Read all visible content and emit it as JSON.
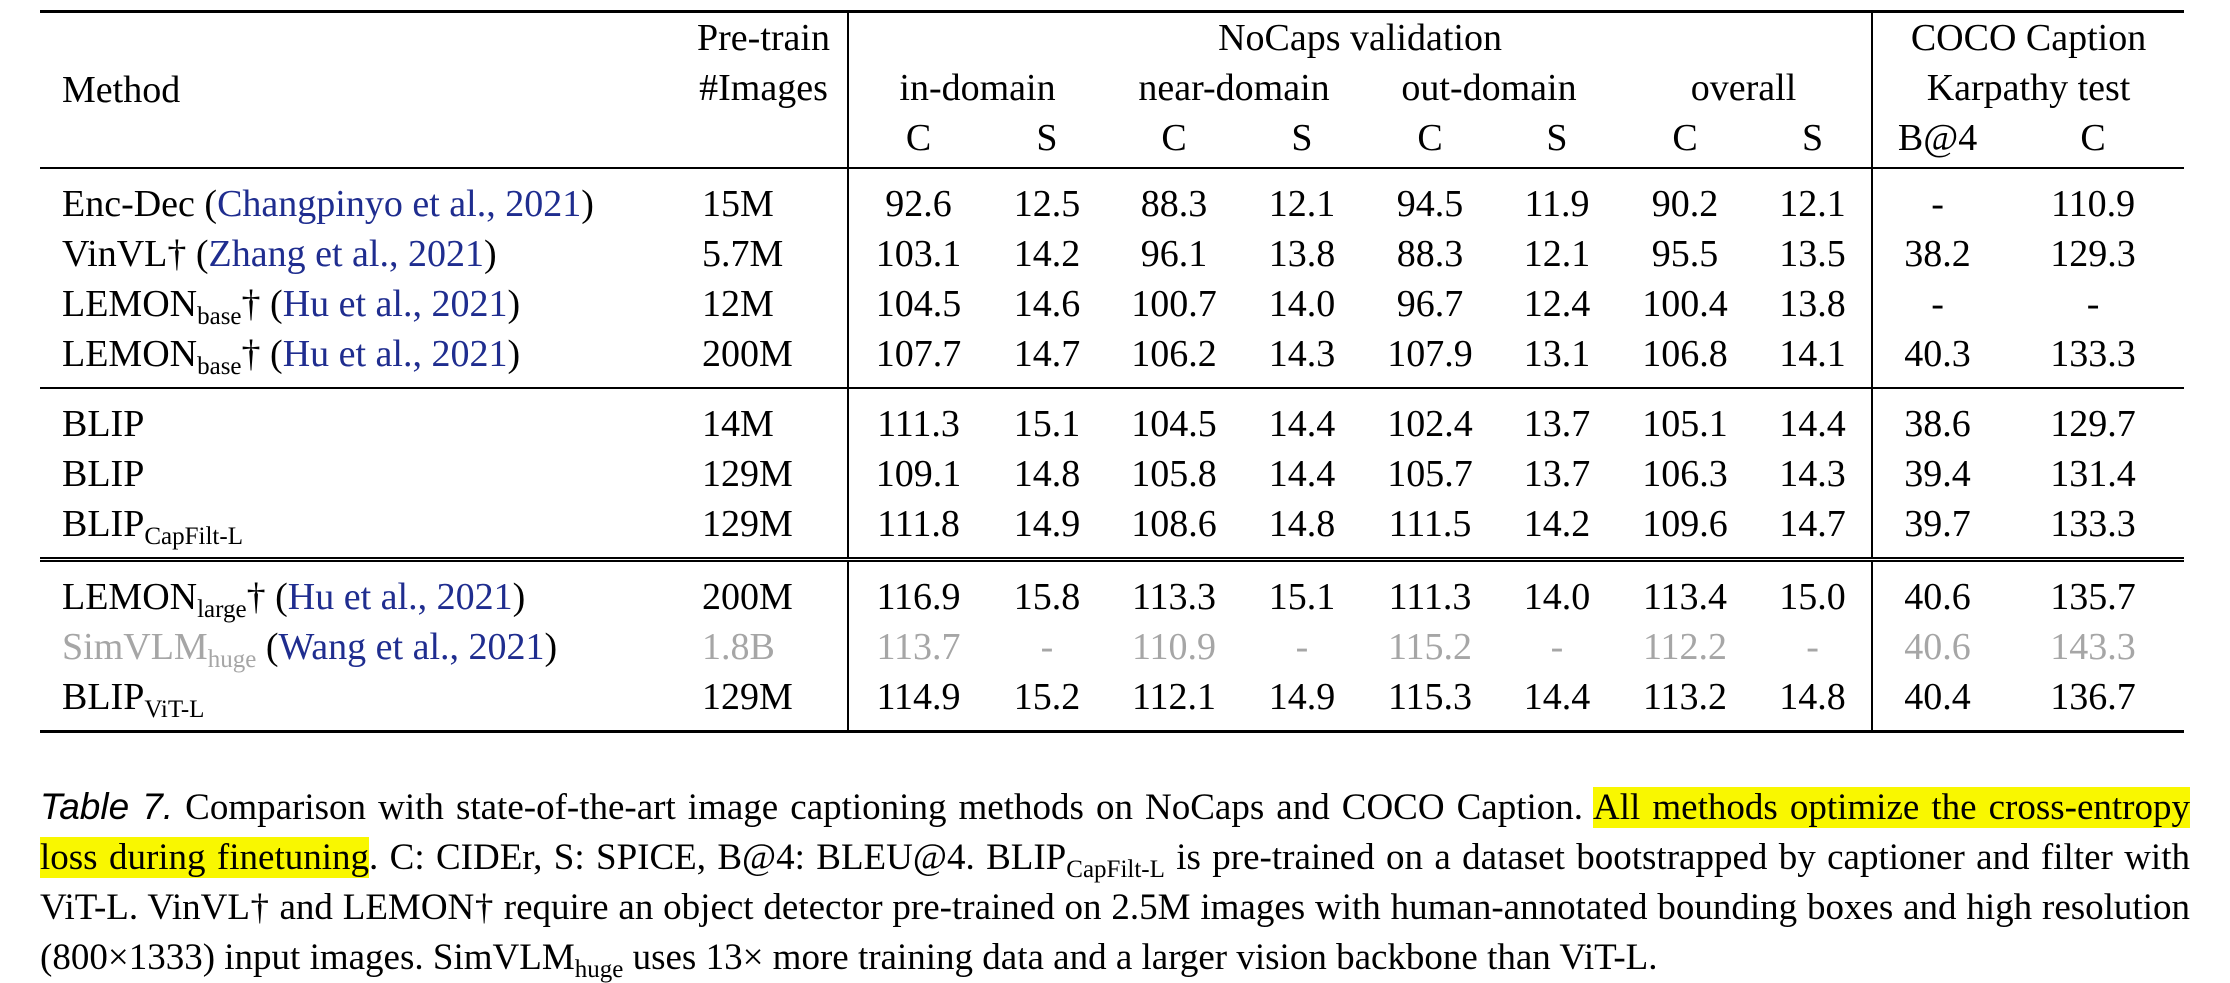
{
  "table": {
    "header": {
      "method": "Method",
      "pretrain_line1": "Pre-train",
      "pretrain_line2": "#Images",
      "nocaps_group": "NoCaps validation",
      "coco_group_line1": "COCO Caption",
      "coco_group_line2": "Karpathy test",
      "subgroups": [
        "in-domain",
        "near-domain",
        "out-domain",
        "overall"
      ],
      "metric_c": "C",
      "metric_s": "S",
      "metric_b4": "B@4"
    },
    "rows": [
      {
        "name": "Enc-Dec",
        "sub": "",
        "dagger": "",
        "cite": "Changpinyo et al., 2021",
        "cite_open": " (",
        "cite_close": ")",
        "images": "15M",
        "vals": [
          "92.6",
          "12.5",
          "88.3",
          "12.1",
          "94.5",
          "11.9",
          "90.2",
          "12.1",
          "-",
          "110.9"
        ]
      },
      {
        "name": "VinVL",
        "sub": "",
        "dagger": "†",
        "cite": "Zhang et al., 2021",
        "cite_open": " (",
        "cite_close": ")",
        "images": "5.7M",
        "vals": [
          "103.1",
          "14.2",
          "96.1",
          "13.8",
          "88.3",
          "12.1",
          "95.5",
          "13.5",
          "38.2",
          "129.3"
        ]
      },
      {
        "name": "LEMON",
        "sub": "base",
        "dagger": "†",
        "cite": "Hu et al., 2021",
        "cite_open": " (",
        "cite_close": ")",
        "images": "12M",
        "vals": [
          "104.5",
          "14.6",
          "100.7",
          "14.0",
          "96.7",
          "12.4",
          "100.4",
          "13.8",
          "-",
          "-"
        ]
      },
      {
        "name": "LEMON",
        "sub": "base",
        "dagger": "†",
        "cite": "Hu et al., 2021",
        "cite_open": " (",
        "cite_close": ")",
        "images": "200M",
        "vals": [
          "107.7",
          "14.7",
          "106.2",
          "14.3",
          "107.9",
          "13.1",
          "106.8",
          "14.1",
          "40.3",
          "133.3"
        ]
      },
      {
        "name": "BLIP",
        "sub": "",
        "dagger": "",
        "cite": "",
        "cite_open": "",
        "cite_close": "",
        "images": "14M",
        "vals": [
          "111.3",
          "15.1",
          "104.5",
          "14.4",
          "102.4",
          "13.7",
          "105.1",
          "14.4",
          "38.6",
          "129.7"
        ]
      },
      {
        "name": "BLIP",
        "sub": "",
        "dagger": "",
        "cite": "",
        "cite_open": "",
        "cite_close": "",
        "images": "129M",
        "vals": [
          "109.1",
          "14.8",
          "105.8",
          "14.4",
          "105.7",
          "13.7",
          "106.3",
          "14.3",
          "39.4",
          "131.4"
        ]
      },
      {
        "name": "BLIP",
        "sub": "CapFilt-L",
        "dagger": "",
        "cite": "",
        "cite_open": "",
        "cite_close": "",
        "images": "129M",
        "vals": [
          "111.8",
          "14.9",
          "108.6",
          "14.8",
          "111.5",
          "14.2",
          "109.6",
          "14.7",
          "39.7",
          "133.3"
        ]
      },
      {
        "name": "LEMON",
        "sub": "large",
        "dagger": "†",
        "cite": "Hu et al., 2021",
        "cite_open": " (",
        "cite_close": ")",
        "images": "200M",
        "vals": [
          "116.9",
          "15.8",
          "113.3",
          "15.1",
          "111.3",
          "14.0",
          "113.4",
          "15.0",
          "40.6",
          "135.7"
        ]
      },
      {
        "name": "SimVLM",
        "sub": "huge",
        "dagger": "",
        "cite": "Wang et al., 2021",
        "cite_open": " (",
        "cite_close": ")",
        "images": "1.8B",
        "vals": [
          "113.7",
          "-",
          "110.9",
          "-",
          "115.2",
          "-",
          "112.2",
          "-",
          "40.6",
          "143.3"
        ]
      },
      {
        "name": "BLIP",
        "sub": "ViT-L",
        "dagger": "",
        "cite": "",
        "cite_open": "",
        "cite_close": "",
        "images": "129M",
        "vals": [
          "114.9",
          "15.2",
          "112.1",
          "14.9",
          "115.3",
          "14.4",
          "113.2",
          "14.8",
          "40.4",
          "136.7"
        ]
      }
    ]
  },
  "caption": {
    "label": "Table 7.",
    "part1": " Comparison with state-of-the-art image captioning methods on NoCaps and COCO Caption. ",
    "highlight": "All methods optimize the cross-entropy loss during finetuning",
    "part2": ". C: CIDEr, S: SPICE, B@4: BLEU@4. BLIP",
    "sub1": "CapFilt-L",
    "part3": " is pre-trained on a dataset bootstrapped by captioner and filter with ViT-L. VinVL† and LEMON† require an object detector pre-trained on 2.5M images with human-annotated bounding boxes and high resolution (800×1333) input images. SimVLM",
    "sub2": "huge",
    "part4": " uses 13× more training data and a larger vision backbone than ViT-L."
  },
  "colors": {
    "citation": "#1f2d8f",
    "greyed": "#a6a6a6",
    "highlight": "#f9f700"
  }
}
